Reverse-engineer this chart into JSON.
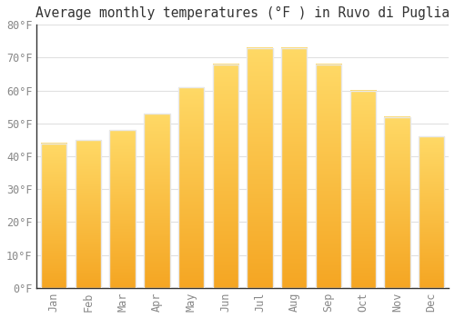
{
  "title": "Average monthly temperatures (°F ) in Ruvo di Puglia",
  "months": [
    "Jan",
    "Feb",
    "Mar",
    "Apr",
    "May",
    "Jun",
    "Jul",
    "Aug",
    "Sep",
    "Oct",
    "Nov",
    "Dec"
  ],
  "values": [
    44,
    45,
    48,
    53,
    61,
    68,
    73,
    73,
    68,
    60,
    52,
    46
  ],
  "bar_color_bottom": "#F5A623",
  "bar_color_top": "#FFD966",
  "bar_edge_color": "#E8E8E8",
  "ylim": [
    0,
    80
  ],
  "ytick_step": 10,
  "background_color": "#FFFFFF",
  "grid_color": "#E0E0E0",
  "title_fontsize": 10.5,
  "tick_fontsize": 8.5,
  "tick_color": "#888888"
}
